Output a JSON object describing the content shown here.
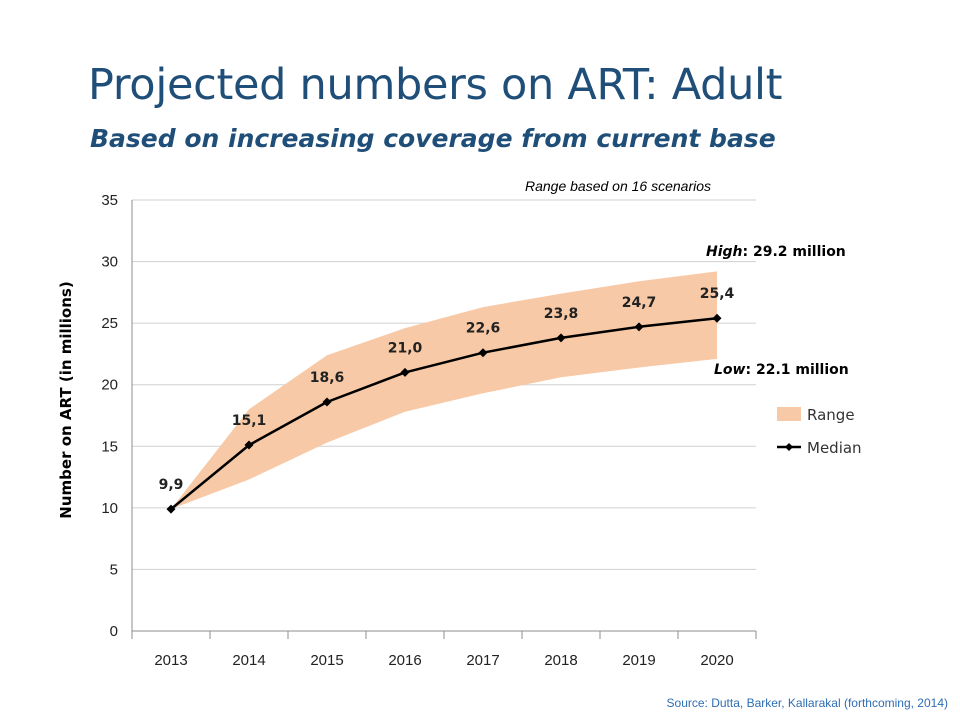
{
  "slide": {
    "title": "Projected numbers on ART: Adult",
    "subtitle": "Based on increasing coverage from current base",
    "source": "Source: Dutta, Barker,  Kallarakal  (forthcoming, 2014)"
  },
  "colors": {
    "title": "#1f4e79",
    "range_fill": "#f8c9a6",
    "median_line": "#000000",
    "grid": "#d0d0d0",
    "source": "#2e6db4"
  },
  "chart_data": {
    "type": "area",
    "categories": [
      "2013",
      "2014",
      "2015",
      "2016",
      "2017",
      "2018",
      "2019",
      "2020"
    ],
    "series": [
      {
        "name": "Range",
        "kind": "band",
        "low": [
          9.9,
          12.3,
          15.3,
          17.8,
          19.3,
          20.6,
          21.4,
          22.1
        ],
        "high": [
          9.9,
          18.0,
          22.4,
          24.6,
          26.3,
          27.4,
          28.4,
          29.2
        ]
      },
      {
        "name": "Median",
        "kind": "line",
        "values": [
          9.9,
          15.1,
          18.6,
          21.0,
          22.6,
          23.8,
          24.7,
          25.4
        ],
        "labels": [
          "9,9",
          "15,1",
          "18,6",
          "21,0",
          "22,6",
          "23,8",
          "24,7",
          "25,4"
        ]
      }
    ],
    "ylabel": "Number on ART (in millions)",
    "xlabel": "",
    "ylim": [
      0,
      35
    ],
    "yticks": [
      0,
      5,
      10,
      15,
      20,
      25,
      30,
      35
    ],
    "grid": true,
    "legend_position": "right",
    "annotations": {
      "note": "Range based on 16 scenarios",
      "high_label": "High",
      "high_value": ": 29.2 million",
      "low_label": "Low",
      "low_value": ": 22.1 million"
    }
  }
}
